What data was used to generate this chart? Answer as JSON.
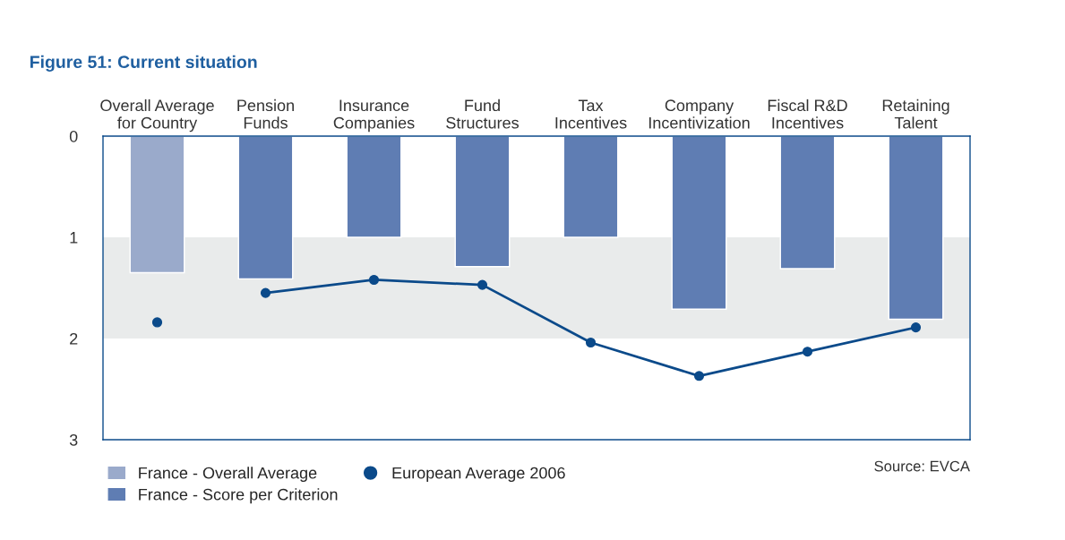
{
  "chart_data": {
    "type": "bar",
    "title": "Figure 51: Current situation",
    "categories": [
      "Overall Average\nfor Country",
      "Pension\nFunds",
      "Insurance\nCompanies",
      "Fund\nStructures",
      "Tax\nIncentives",
      "Company\nIncentivization",
      "Fiscal R&D\nIncentives",
      "Retaining\nTalent"
    ],
    "series": [
      {
        "name": "France - Overall Average",
        "color": "#9aaacb",
        "values": [
          1.35,
          null,
          null,
          null,
          null,
          null,
          null,
          null
        ]
      },
      {
        "name": "France - Score per Criterion",
        "color": "#5f7db3",
        "values": [
          null,
          1.41,
          1.0,
          1.29,
          1.0,
          1.71,
          1.31,
          1.81
        ]
      },
      {
        "name": "European Average 2006",
        "type": "scatter",
        "color": "#0b4a8a",
        "values": [
          1.84,
          null,
          null,
          null,
          null,
          null,
          null,
          null
        ]
      },
      {
        "type": "line",
        "color": "#0b4a8a",
        "values": [
          null,
          1.55,
          1.42,
          1.47,
          2.04,
          2.37,
          2.13,
          1.89
        ]
      }
    ],
    "ylim": [
      3,
      0
    ],
    "yticks": [
      0,
      1,
      2,
      3
    ],
    "bands": [
      {
        "axis": "y",
        "from": 1,
        "to": 2,
        "color": "#e9ebeb"
      }
    ],
    "legend": "bottom",
    "marker": "circle",
    "grid": false,
    "annotations": [
      "Source: EVCA"
    ]
  }
}
